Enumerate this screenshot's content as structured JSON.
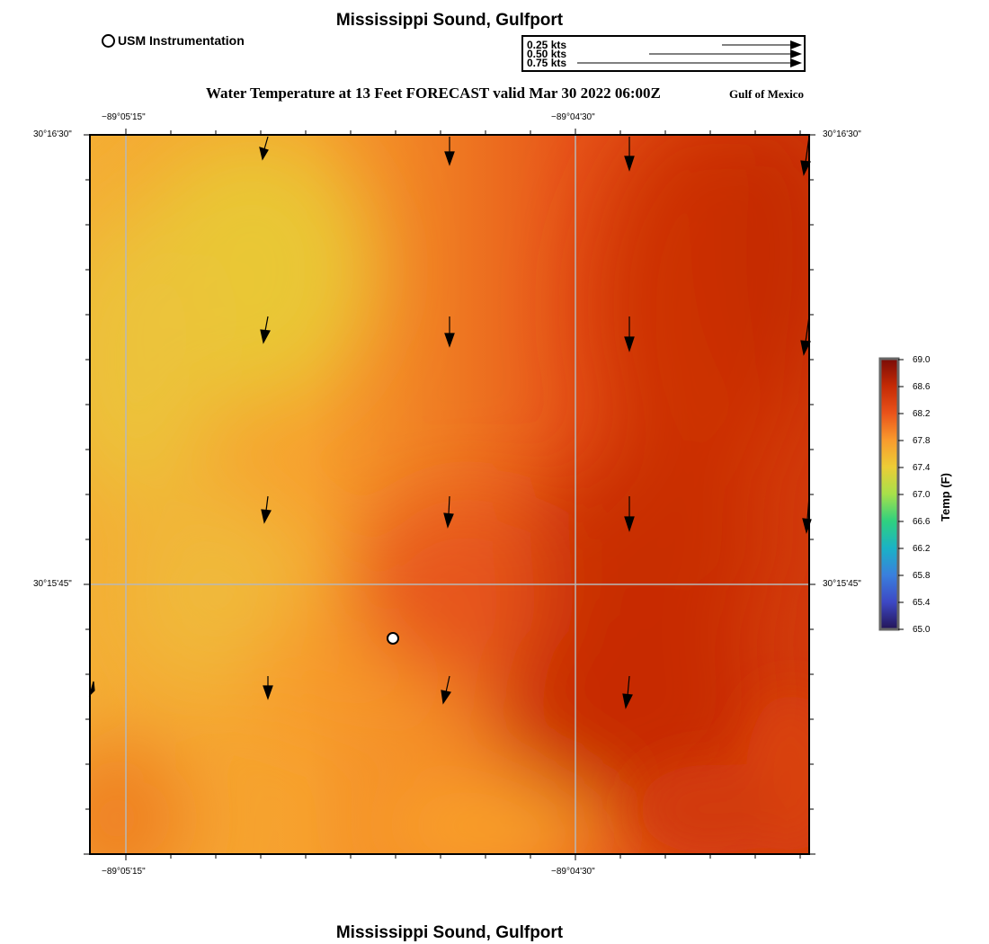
{
  "header": {
    "title": "Mississippi Sound, Gulfport",
    "subtitle": "Water Temperature at 13 Feet FORECAST valid Mar 30 2022 06:00Z",
    "region": "Gulf of Mexico"
  },
  "footer": {
    "title": "Mississippi Sound, Gulfport"
  },
  "legend": {
    "station_label": "USM Instrumentation",
    "speed_scale": [
      "0.25 kts",
      "0.50 kts",
      "0.75 kts"
    ]
  },
  "axes": {
    "lon_labels": [
      "−89°05'15\"",
      "−89°04'30\""
    ],
    "lat_labels": [
      "30°16'30\"",
      "30°15'45\""
    ]
  },
  "colorbar": {
    "title": "Temp (F)",
    "ticks": [
      "69.0",
      "68.6",
      "68.2",
      "67.8",
      "67.4",
      "67.0",
      "66.6",
      "66.2",
      "65.8",
      "65.4",
      "65.0"
    ],
    "colors": [
      "#7a0b07",
      "#c42a05",
      "#e9521a",
      "#f99a2d",
      "#eccd36",
      "#a7e04a",
      "#2fd17f",
      "#1ab2c6",
      "#3a7fdd",
      "#3d48c4",
      "#231456"
    ]
  },
  "map": {
    "palette": {
      "yellow": "#e9c432",
      "orange": "#f9a02d",
      "orange_red": "#ec5e1a",
      "red": "#c72a04"
    }
  }
}
